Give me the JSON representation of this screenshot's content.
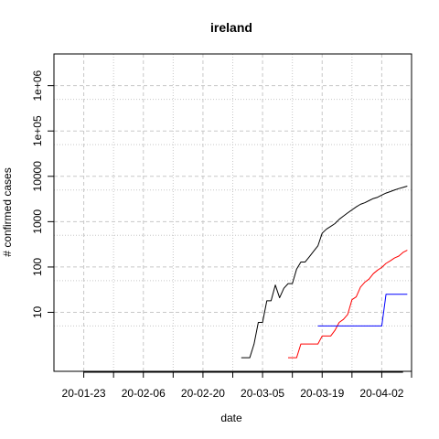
{
  "chart_data": {
    "type": "line",
    "title": "ireland",
    "xlabel": "date",
    "ylabel": "# confirmed cases",
    "y_scale": "log10",
    "ylim": [
      0.5,
      5000000
    ],
    "xlim": [
      "2020-01-16",
      "2020-04-09"
    ],
    "grid": true,
    "x_ticks": [
      {
        "date": "2020-01-23",
        "label": "20-01-23"
      },
      {
        "date": "2020-02-06",
        "label": "20-02-06"
      },
      {
        "date": "2020-02-20",
        "label": "20-02-20"
      },
      {
        "date": "2020-03-05",
        "label": "20-03-05"
      },
      {
        "date": "2020-03-19",
        "label": "20-03-19"
      },
      {
        "date": "2020-04-02",
        "label": "20-04-02"
      }
    ],
    "y_ticks": [
      {
        "value": 10,
        "label": "10"
      },
      {
        "value": 100,
        "label": "100"
      },
      {
        "value": 1000,
        "label": "1000"
      },
      {
        "value": 10000,
        "label": "10000"
      },
      {
        "value": 100000,
        "label": "1e+05"
      },
      {
        "value": 1000000,
        "label": "1e+06"
      }
    ],
    "series": [
      {
        "color": "#000000",
        "points": [
          [
            "2020-02-29",
            1
          ],
          [
            "2020-03-01",
            1
          ],
          [
            "2020-03-02",
            1
          ],
          [
            "2020-03-03",
            2
          ],
          [
            "2020-03-04",
            6
          ],
          [
            "2020-03-05",
            6
          ],
          [
            "2020-03-06",
            18
          ],
          [
            "2020-03-07",
            18
          ],
          [
            "2020-03-08",
            40
          ],
          [
            "2020-03-09",
            21
          ],
          [
            "2020-03-10",
            34
          ],
          [
            "2020-03-11",
            43
          ],
          [
            "2020-03-12",
            43
          ],
          [
            "2020-03-13",
            90
          ],
          [
            "2020-03-14",
            129
          ],
          [
            "2020-03-15",
            129
          ],
          [
            "2020-03-16",
            169
          ],
          [
            "2020-03-17",
            223
          ],
          [
            "2020-03-18",
            292
          ],
          [
            "2020-03-19",
            557
          ],
          [
            "2020-03-20",
            683
          ],
          [
            "2020-03-21",
            785
          ],
          [
            "2020-03-22",
            906
          ],
          [
            "2020-03-23",
            1125
          ],
          [
            "2020-03-24",
            1329
          ],
          [
            "2020-03-25",
            1564
          ],
          [
            "2020-03-26",
            1819
          ],
          [
            "2020-03-27",
            2121
          ],
          [
            "2020-03-28",
            2415
          ],
          [
            "2020-03-29",
            2615
          ],
          [
            "2020-03-30",
            2910
          ],
          [
            "2020-03-31",
            3235
          ],
          [
            "2020-04-01",
            3447
          ],
          [
            "2020-04-02",
            3849
          ],
          [
            "2020-04-03",
            4273
          ],
          [
            "2020-04-04",
            4604
          ],
          [
            "2020-04-05",
            4994
          ],
          [
            "2020-04-06",
            5364
          ],
          [
            "2020-04-07",
            5709
          ],
          [
            "2020-04-08",
            6074
          ]
        ]
      },
      {
        "color": "#ff0000",
        "points": [
          [
            "2020-03-11",
            1
          ],
          [
            "2020-03-12",
            1
          ],
          [
            "2020-03-13",
            1
          ],
          [
            "2020-03-14",
            2
          ],
          [
            "2020-03-15",
            2
          ],
          [
            "2020-03-16",
            2
          ],
          [
            "2020-03-17",
            2
          ],
          [
            "2020-03-18",
            2
          ],
          [
            "2020-03-19",
            3
          ],
          [
            "2020-03-20",
            3
          ],
          [
            "2020-03-21",
            3
          ],
          [
            "2020-03-22",
            4
          ],
          [
            "2020-03-23",
            6
          ],
          [
            "2020-03-24",
            7
          ],
          [
            "2020-03-25",
            9
          ],
          [
            "2020-03-26",
            19
          ],
          [
            "2020-03-27",
            22
          ],
          [
            "2020-03-28",
            36
          ],
          [
            "2020-03-29",
            46
          ],
          [
            "2020-03-30",
            54
          ],
          [
            "2020-03-31",
            71
          ],
          [
            "2020-04-01",
            85
          ],
          [
            "2020-04-02",
            98
          ],
          [
            "2020-04-03",
            120
          ],
          [
            "2020-04-04",
            137
          ],
          [
            "2020-04-05",
            158
          ],
          [
            "2020-04-06",
            174
          ],
          [
            "2020-04-07",
            210
          ],
          [
            "2020-04-08",
            235
          ]
        ]
      },
      {
        "color": "#0000ff",
        "points": [
          [
            "2020-03-18",
            5
          ],
          [
            "2020-03-19",
            5
          ],
          [
            "2020-03-20",
            5
          ],
          [
            "2020-03-21",
            5
          ],
          [
            "2020-03-22",
            5
          ],
          [
            "2020-03-23",
            5
          ],
          [
            "2020-03-24",
            5
          ],
          [
            "2020-03-25",
            5
          ],
          [
            "2020-03-26",
            5
          ],
          [
            "2020-03-27",
            5
          ],
          [
            "2020-03-28",
            5
          ],
          [
            "2020-03-29",
            5
          ],
          [
            "2020-03-30",
            5
          ],
          [
            "2020-03-31",
            5
          ],
          [
            "2020-04-01",
            5
          ],
          [
            "2020-04-02",
            5
          ],
          [
            "2020-04-03",
            25
          ],
          [
            "2020-04-04",
            25
          ],
          [
            "2020-04-05",
            25
          ],
          [
            "2020-04-06",
            25
          ],
          [
            "2020-04-07",
            25
          ],
          [
            "2020-04-08",
            25
          ]
        ]
      }
    ]
  }
}
